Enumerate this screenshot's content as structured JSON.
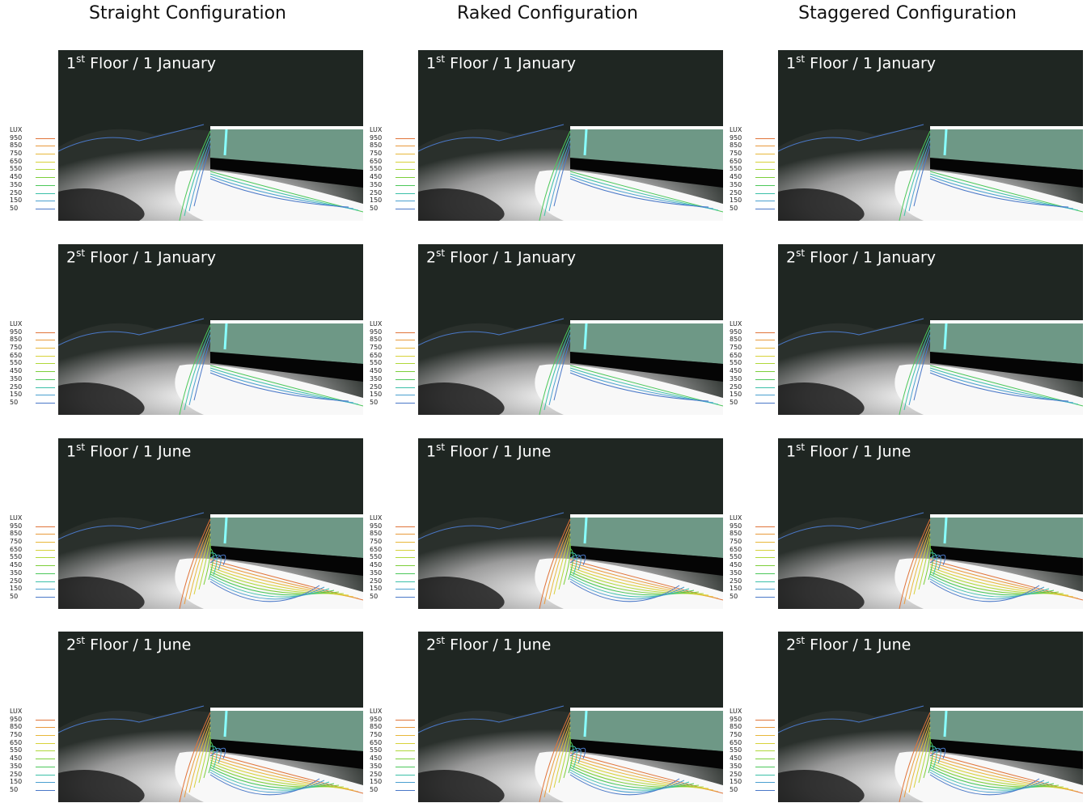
{
  "columns": [
    {
      "title": "Straight Configuration"
    },
    {
      "title": "Raked Configuration"
    },
    {
      "title": "Staggered Configuration"
    }
  ],
  "rows": [
    {
      "ordinal": "1",
      "suffix": "st",
      "text": "Floor / 1 January"
    },
    {
      "ordinal": "2",
      "suffix": "st",
      "text": "Floor / 1 January"
    },
    {
      "ordinal": "1",
      "suffix": "st",
      "text": "Floor / 1 June"
    },
    {
      "ordinal": "2",
      "suffix": "st",
      "text": "Floor / 1 June"
    }
  ],
  "legend": {
    "unit": "LUX",
    "levels": [
      "950",
      "850",
      "750",
      "650",
      "550",
      "450",
      "350",
      "250",
      "150",
      "50"
    ],
    "colors": [
      "#e0743a",
      "#e89a3c",
      "#e8b83a",
      "#d8d23a",
      "#b0d83a",
      "#7ccf3a",
      "#4cc85a",
      "#3cc0a8",
      "#4aa0d0",
      "#4a78c8"
    ]
  }
}
